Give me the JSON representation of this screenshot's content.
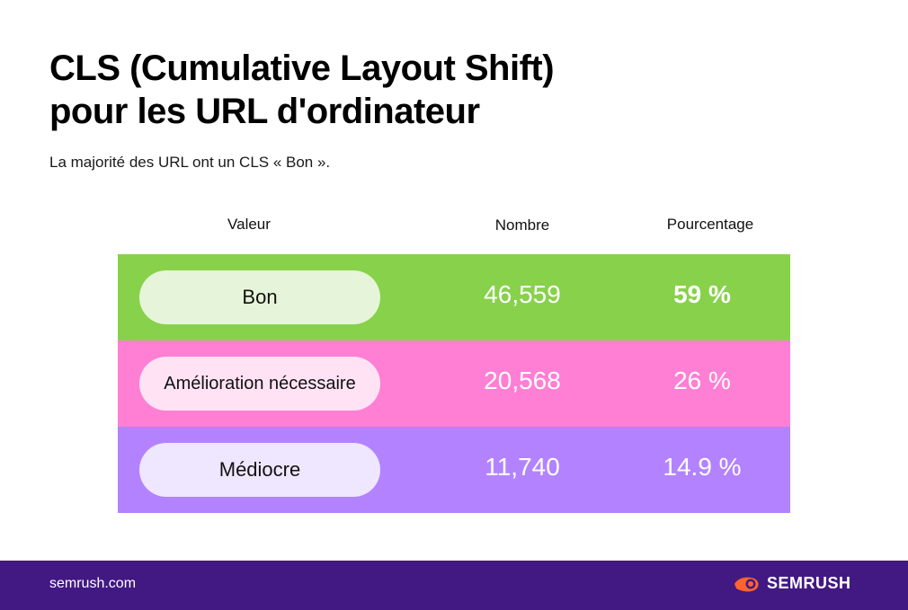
{
  "title_line1": "CLS (Cumulative Layout Shift)",
  "title_line2": "pour les URL d'ordinateur",
  "subtitle": "La majorité des URL ont un CLS « Bon ».",
  "footer": {
    "url": "semrush.com",
    "brand": "SEMRUSH"
  },
  "colors": {
    "good": "#88d14b",
    "needs_improvement": "#ff7fd4",
    "poor": "#b383ff",
    "footer_bg": "#421983",
    "brand_orange": "#ff642d"
  },
  "chart_data": {
    "type": "table",
    "columns": [
      "Valeur",
      "Nombre",
      "Pourcentage"
    ],
    "rows": [
      {
        "label": "Bon",
        "count": "46,559",
        "percent": "59 %",
        "color": "#88d14b",
        "pill_color": "#e6f5d9"
      },
      {
        "label": "Amélioration nécessaire",
        "count": "20,568",
        "percent": "26 %",
        "color": "#ff7fd4",
        "pill_color": "#ffe3f5"
      },
      {
        "label": "Médiocre",
        "count": "11,740",
        "percent": "14.9 %",
        "color": "#b383ff",
        "pill_color": "#efe6ff"
      }
    ]
  }
}
